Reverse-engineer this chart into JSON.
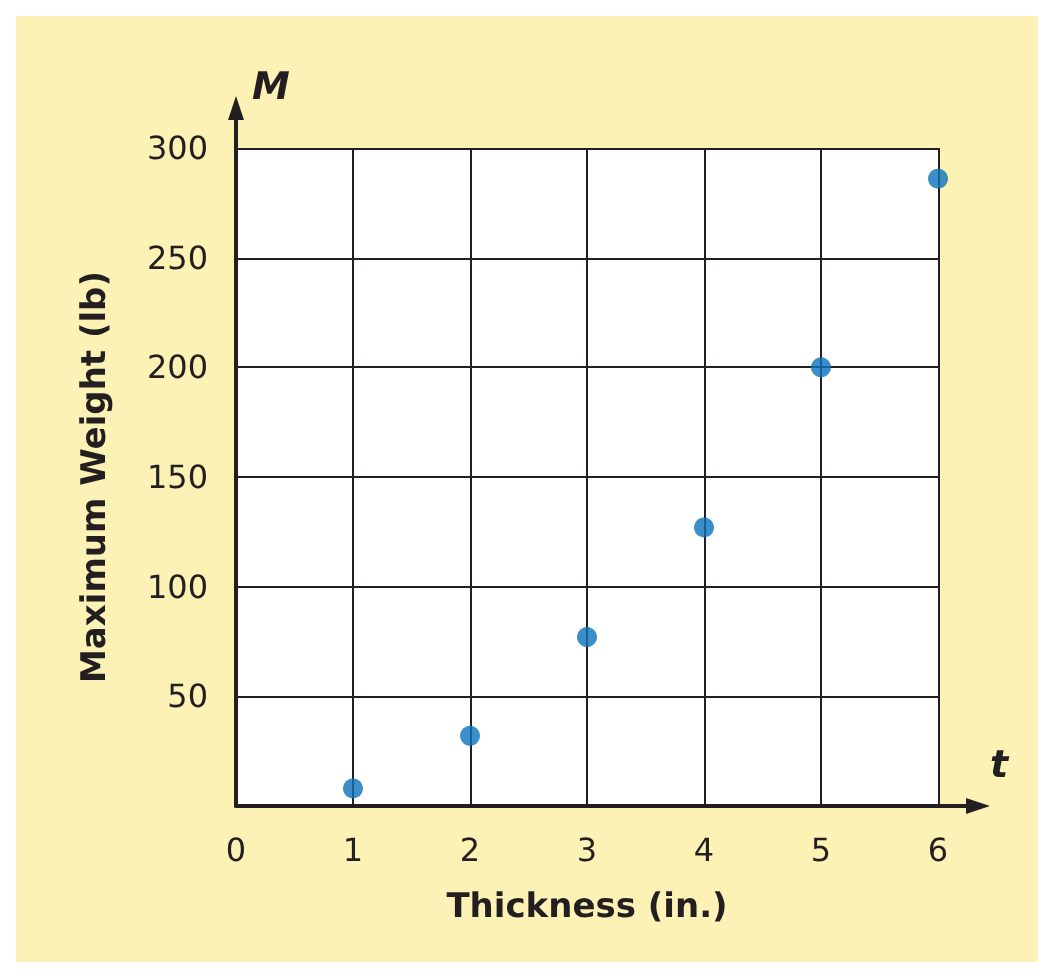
{
  "chart_data": {
    "type": "scatter",
    "xlabel": "Thickness (in.)",
    "ylabel": "Maximum Weight (lb)",
    "annotations": [
      "M",
      "t"
    ],
    "x": [
      1,
      2,
      3,
      4,
      5,
      6
    ],
    "values": [
      8,
      32,
      77,
      127,
      200,
      286
    ],
    "color": "#0b72bc",
    "xlim": [
      0,
      6
    ],
    "ylim": [
      0,
      300
    ],
    "xticks": [
      0,
      1,
      2,
      3,
      4,
      5,
      6
    ],
    "yticks": [
      {
        "value": 0,
        "label": null
      },
      50,
      100,
      150,
      200,
      250,
      300
    ],
    "grid": true,
    "marker": "circle"
  }
}
